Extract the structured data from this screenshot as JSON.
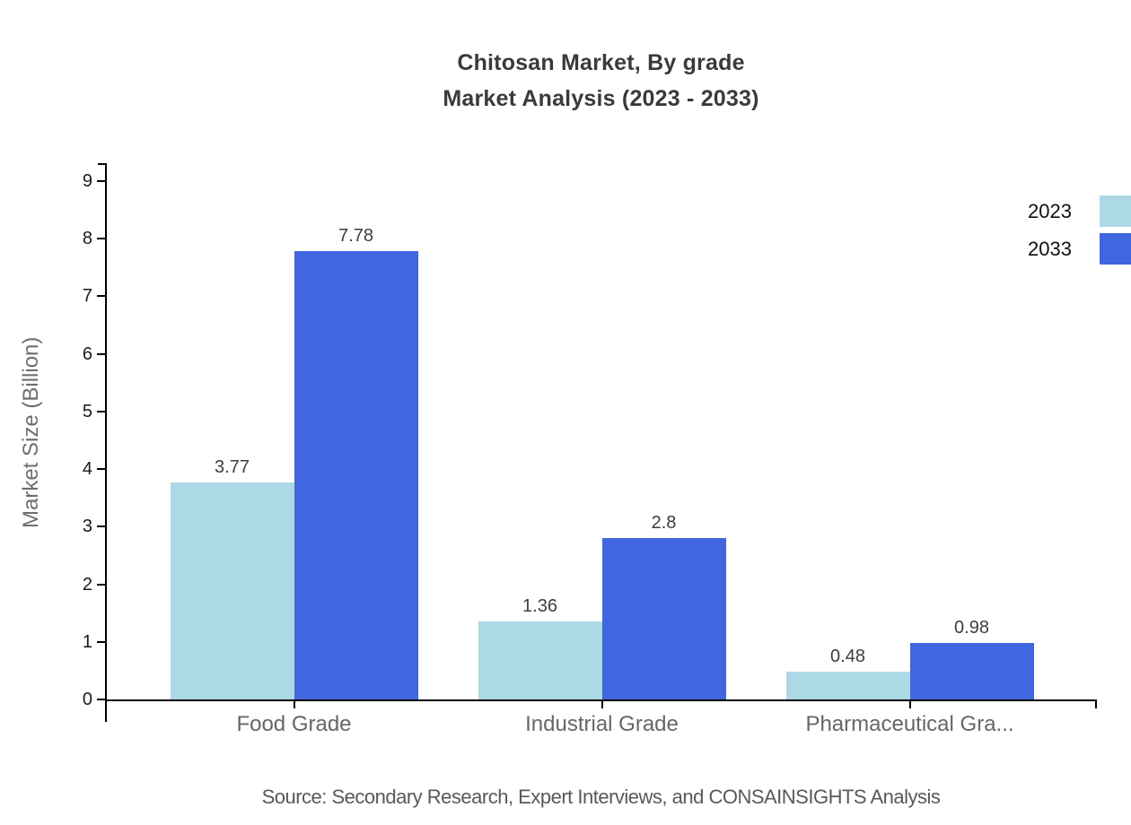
{
  "chart_data": {
    "type": "bar",
    "title_line1": "Chitosan Market, By grade",
    "title_line2": "Market Analysis (2023 - 2033)",
    "ylabel": "Market Size (Billion)",
    "categories": [
      "Food Grade",
      "Industrial Grade",
      "Pharmaceutical Gra..."
    ],
    "series": [
      {
        "name": "2023",
        "color": "#ADD8E6",
        "values": [
          3.77,
          1.36,
          0.48
        ]
      },
      {
        "name": "2033",
        "color": "#4066E0",
        "values": [
          7.78,
          2.8,
          0.98
        ]
      }
    ],
    "yticks": [
      0,
      1,
      2,
      3,
      4,
      5,
      6,
      7,
      8,
      9
    ],
    "ylim": [
      0,
      9
    ],
    "grid": false,
    "legend_position": "top-right",
    "axis_color": "#000000",
    "tick_label_color": "#1a1a1a",
    "category_label_color": "#666666",
    "value_label_color": "#3d3d3d",
    "title_color": "#3a3a3a"
  },
  "footer": {
    "source": "Source: Secondary Research, Expert Interviews, and CONSAINSIGHTS Analysis"
  }
}
